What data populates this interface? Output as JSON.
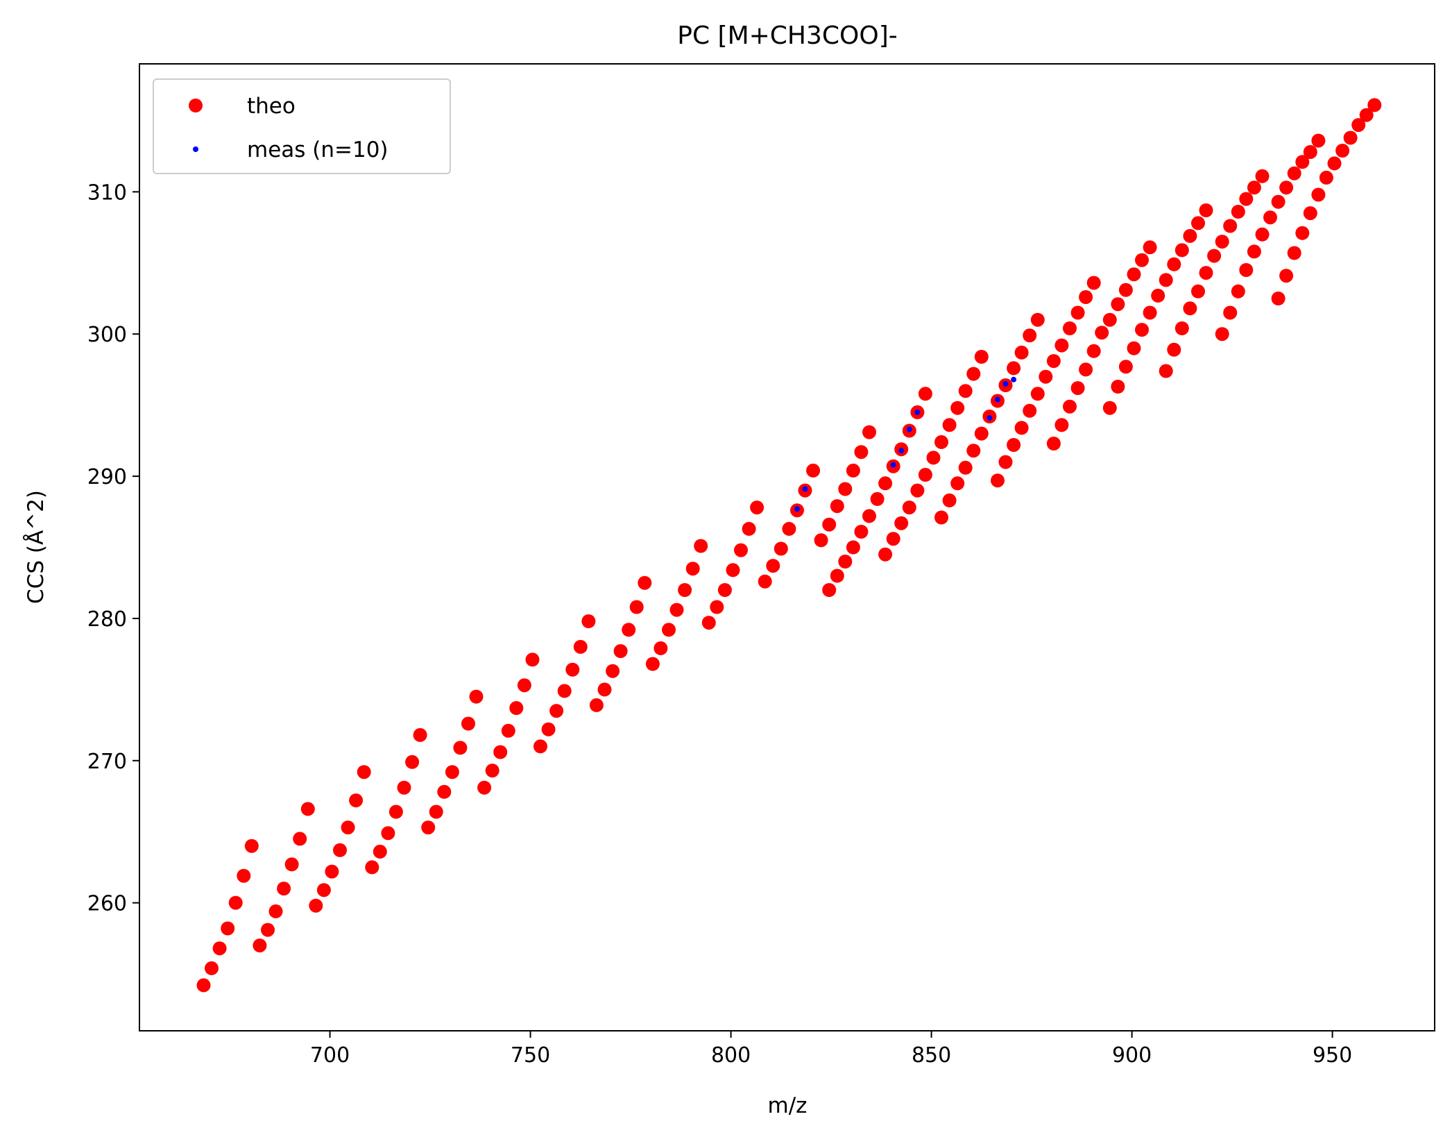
{
  "chart_data": {
    "type": "scatter",
    "title": "PC [M+CH3COO]-",
    "xlabel": "m/z",
    "ylabel": "CCS (Å^2)",
    "xlim": [
      652.5,
      975.5
    ],
    "ylim": [
      251,
      319
    ],
    "xticks": [
      700,
      750,
      800,
      850,
      900,
      950
    ],
    "yticks": [
      260,
      270,
      280,
      290,
      300,
      310
    ],
    "grid": false,
    "legend_position": "upper-left",
    "series": [
      {
        "name": "theo",
        "color": "#ff0000",
        "marker_radius": 10,
        "points": [
          [
            668.5,
            254.2
          ],
          [
            670.5,
            255.4
          ],
          [
            672.5,
            256.8
          ],
          [
            674.5,
            258.2
          ],
          [
            676.5,
            260.0
          ],
          [
            678.5,
            261.9
          ],
          [
            680.5,
            264.0
          ],
          [
            682.5,
            257.0
          ],
          [
            684.5,
            258.1
          ],
          [
            686.5,
            259.4
          ],
          [
            688.5,
            261.0
          ],
          [
            690.5,
            262.7
          ],
          [
            692.5,
            264.5
          ],
          [
            694.5,
            266.6
          ],
          [
            696.5,
            259.8
          ],
          [
            698.5,
            260.9
          ],
          [
            700.5,
            262.2
          ],
          [
            702.5,
            263.7
          ],
          [
            704.5,
            265.3
          ],
          [
            706.5,
            267.2
          ],
          [
            708.5,
            269.2
          ],
          [
            710.5,
            262.5
          ],
          [
            712.5,
            263.6
          ],
          [
            714.5,
            264.9
          ],
          [
            716.5,
            266.4
          ],
          [
            718.5,
            268.1
          ],
          [
            720.5,
            269.9
          ],
          [
            722.5,
            271.8
          ],
          [
            724.5,
            265.3
          ],
          [
            726.5,
            266.4
          ],
          [
            728.5,
            267.8
          ],
          [
            730.5,
            269.2
          ],
          [
            732.5,
            270.9
          ],
          [
            734.5,
            272.6
          ],
          [
            736.5,
            274.5
          ],
          [
            738.5,
            268.1
          ],
          [
            740.5,
            269.3
          ],
          [
            742.5,
            270.6
          ],
          [
            744.5,
            272.1
          ],
          [
            746.5,
            273.7
          ],
          [
            748.5,
            275.3
          ],
          [
            750.5,
            277.1
          ],
          [
            752.5,
            271.0
          ],
          [
            754.5,
            272.2
          ],
          [
            756.5,
            273.5
          ],
          [
            758.5,
            274.9
          ],
          [
            760.5,
            276.4
          ],
          [
            762.5,
            278.0
          ],
          [
            764.5,
            279.8
          ],
          [
            766.5,
            273.9
          ],
          [
            768.5,
            275.0
          ],
          [
            770.5,
            276.3
          ],
          [
            772.5,
            277.7
          ],
          [
            774.5,
            279.2
          ],
          [
            776.5,
            280.8
          ],
          [
            778.5,
            282.5
          ],
          [
            780.5,
            276.8
          ],
          [
            782.5,
            277.9
          ],
          [
            784.5,
            279.2
          ],
          [
            786.5,
            280.6
          ],
          [
            788.5,
            282.0
          ],
          [
            790.5,
            283.5
          ],
          [
            792.5,
            285.1
          ],
          [
            794.5,
            279.7
          ],
          [
            796.5,
            280.8
          ],
          [
            798.5,
            282.0
          ],
          [
            800.5,
            283.4
          ],
          [
            802.5,
            284.8
          ],
          [
            804.5,
            286.3
          ],
          [
            806.5,
            287.8
          ],
          [
            808.5,
            282.6
          ],
          [
            810.5,
            283.7
          ],
          [
            812.5,
            284.9
          ],
          [
            814.5,
            286.3
          ],
          [
            816.5,
            287.6
          ],
          [
            818.5,
            289.0
          ],
          [
            820.5,
            290.4
          ],
          [
            822.5,
            285.5
          ],
          [
            824.5,
            282.0
          ],
          [
            826.5,
            283.0
          ],
          [
            828.5,
            284.0
          ],
          [
            830.5,
            285.0
          ],
          [
            832.5,
            286.1
          ],
          [
            834.5,
            287.2
          ],
          [
            826.5,
            287.9
          ],
          [
            828.5,
            289.1
          ],
          [
            830.5,
            290.4
          ],
          [
            832.5,
            291.7
          ],
          [
            834.5,
            293.1
          ],
          [
            824.5,
            286.6
          ],
          [
            836.5,
            288.4
          ],
          [
            838.5,
            289.5
          ],
          [
            840.5,
            290.7
          ],
          [
            842.5,
            291.9
          ],
          [
            844.5,
            293.2
          ],
          [
            846.5,
            294.5
          ],
          [
            848.5,
            295.8
          ],
          [
            838.5,
            284.5
          ],
          [
            840.5,
            285.6
          ],
          [
            842.5,
            286.7
          ],
          [
            844.5,
            287.8
          ],
          [
            846.5,
            289.0
          ],
          [
            848.5,
            290.1
          ],
          [
            850.5,
            291.3
          ],
          [
            852.5,
            287.1
          ],
          [
            854.5,
            288.3
          ],
          [
            856.5,
            289.5
          ],
          [
            858.5,
            290.6
          ],
          [
            860.5,
            291.8
          ],
          [
            862.5,
            293.0
          ],
          [
            864.5,
            294.2
          ],
          [
            852.5,
            292.4
          ],
          [
            854.5,
            293.6
          ],
          [
            856.5,
            294.8
          ],
          [
            858.5,
            296.0
          ],
          [
            860.5,
            297.2
          ],
          [
            862.5,
            298.4
          ],
          [
            866.5,
            289.7
          ],
          [
            868.5,
            291.0
          ],
          [
            870.5,
            292.2
          ],
          [
            872.5,
            293.4
          ],
          [
            874.5,
            294.6
          ],
          [
            876.5,
            295.8
          ],
          [
            878.5,
            297.0
          ],
          [
            866.5,
            295.3
          ],
          [
            868.5,
            296.4
          ],
          [
            870.5,
            297.6
          ],
          [
            872.5,
            298.7
          ],
          [
            874.5,
            299.9
          ],
          [
            876.5,
            301.0
          ],
          [
            880.5,
            292.3
          ],
          [
            882.5,
            293.6
          ],
          [
            884.5,
            294.9
          ],
          [
            886.5,
            296.2
          ],
          [
            888.5,
            297.5
          ],
          [
            890.5,
            298.8
          ],
          [
            892.5,
            300.1
          ],
          [
            880.5,
            298.1
          ],
          [
            882.5,
            299.2
          ],
          [
            884.5,
            300.4
          ],
          [
            886.5,
            301.5
          ],
          [
            888.5,
            302.6
          ],
          [
            890.5,
            303.6
          ],
          [
            894.5,
            294.8
          ],
          [
            896.5,
            296.3
          ],
          [
            898.5,
            297.7
          ],
          [
            900.5,
            299.0
          ],
          [
            902.5,
            300.3
          ],
          [
            904.5,
            301.5
          ],
          [
            906.5,
            302.7
          ],
          [
            894.5,
            301.0
          ],
          [
            896.5,
            302.1
          ],
          [
            898.5,
            303.1
          ],
          [
            900.5,
            304.2
          ],
          [
            902.5,
            305.2
          ],
          [
            904.5,
            306.1
          ],
          [
            908.5,
            297.4
          ],
          [
            910.5,
            298.9
          ],
          [
            912.5,
            300.4
          ],
          [
            914.5,
            301.8
          ],
          [
            916.5,
            303.0
          ],
          [
            918.5,
            304.3
          ],
          [
            920.5,
            305.5
          ],
          [
            908.5,
            303.8
          ],
          [
            910.5,
            304.9
          ],
          [
            912.5,
            305.9
          ],
          [
            914.5,
            306.9
          ],
          [
            916.5,
            307.8
          ],
          [
            918.5,
            308.7
          ],
          [
            922.5,
            300.0
          ],
          [
            924.5,
            301.5
          ],
          [
            926.5,
            303.0
          ],
          [
            928.5,
            304.5
          ],
          [
            930.5,
            305.8
          ],
          [
            932.5,
            307.0
          ],
          [
            934.5,
            308.2
          ],
          [
            922.5,
            306.5
          ],
          [
            924.5,
            307.6
          ],
          [
            926.5,
            308.6
          ],
          [
            928.5,
            309.5
          ],
          [
            930.5,
            310.3
          ],
          [
            932.5,
            311.1
          ],
          [
            936.5,
            302.5
          ],
          [
            938.5,
            304.1
          ],
          [
            940.5,
            305.7
          ],
          [
            942.5,
            307.1
          ],
          [
            944.5,
            308.5
          ],
          [
            946.5,
            309.8
          ],
          [
            948.5,
            311.0
          ],
          [
            936.5,
            309.3
          ],
          [
            938.5,
            310.3
          ],
          [
            940.5,
            311.3
          ],
          [
            942.5,
            312.1
          ],
          [
            944.5,
            312.8
          ],
          [
            946.5,
            313.6
          ],
          [
            950.5,
            312.0
          ],
          [
            952.5,
            312.9
          ],
          [
            954.5,
            313.8
          ],
          [
            956.5,
            314.7
          ],
          [
            958.5,
            315.4
          ],
          [
            960.5,
            316.1
          ]
        ]
      },
      {
        "name": "meas (n=10)",
        "color": "#0000ff",
        "marker_radius": 4,
        "points": [
          [
            816.5,
            287.7
          ],
          [
            818.5,
            289.1
          ],
          [
            840.5,
            290.8
          ],
          [
            842.5,
            291.8
          ],
          [
            844.5,
            293.3
          ],
          [
            846.5,
            294.5
          ],
          [
            864.5,
            294.1
          ],
          [
            866.5,
            295.4
          ],
          [
            868.5,
            296.5
          ],
          [
            870.5,
            296.8
          ]
        ]
      }
    ]
  }
}
